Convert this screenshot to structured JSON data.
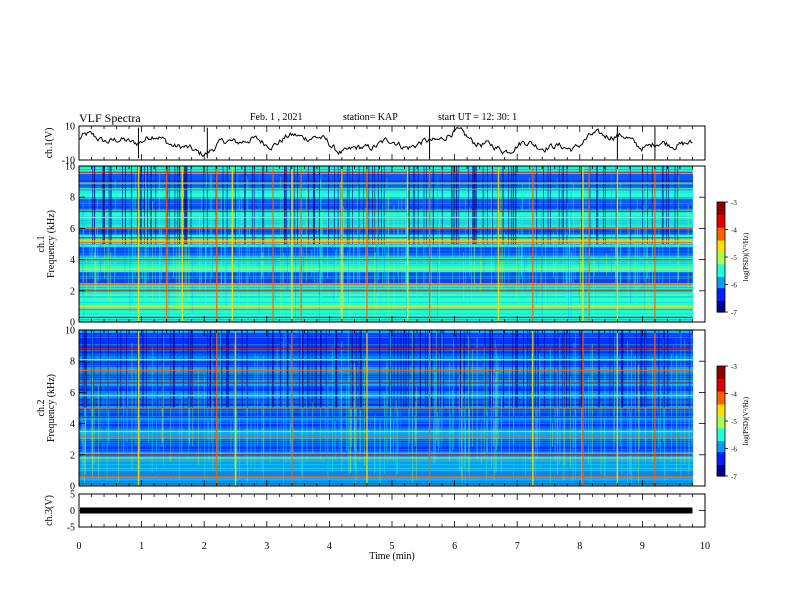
{
  "header": {
    "title": "VLF Spectra",
    "date": "Feb. 1 , 2021",
    "station": "station= KAP",
    "start": "start UT =  12: 30: 1"
  },
  "chart_data": [
    {
      "type": "line",
      "panel": "ch1-waveform",
      "ylabel": "ch.1(V)",
      "yticks": [
        "10",
        "-10"
      ],
      "ylim": [
        -10,
        10
      ],
      "xlim": [
        0,
        10
      ],
      "x_unit": "min",
      "trace_end_min": 9.8,
      "trace_color": "#000000"
    },
    {
      "type": "heatmap",
      "panel": "ch1-spectrogram",
      "ylabel": "ch.1\nFrequency (kHz)",
      "yticks": [
        "0",
        "2",
        "4",
        "6",
        "8",
        "10"
      ],
      "ylim": [
        0,
        10
      ],
      "xlim": [
        0,
        10
      ],
      "data_end_min": 9.8,
      "colorbar": {
        "label": "log(PSD)(V²/Hz)",
        "ticks": [
          "-3",
          "-4",
          "-5",
          "-6",
          "-7"
        ],
        "range": [
          -7,
          -3
        ]
      },
      "strong_lines_khz": [
        0.3,
        0.8,
        1.0,
        2.0,
        2.4,
        3.4,
        4.0,
        5.1,
        5.2,
        5.4,
        6.0,
        6.7,
        7.1,
        8.5,
        8.9,
        9.6
      ],
      "blue_bands_khz": [
        [
          2.5,
          3.2
        ],
        [
          4.2,
          4.8
        ],
        [
          5.6,
          6.0
        ],
        [
          7.2,
          7.9
        ],
        [
          8.6,
          9.5
        ]
      ],
      "spikes_min": [
        0.95,
        1.4,
        1.65,
        2.2,
        2.45,
        3.1,
        3.4,
        3.55,
        4.2,
        4.6,
        5.25,
        5.6,
        6.7,
        7.25,
        8.05,
        8.15,
        8.6,
        9.2
      ]
    },
    {
      "type": "heatmap",
      "panel": "ch2-spectrogram",
      "ylabel": "ch.2\nFrequency (kHz)",
      "yticks": [
        "0",
        "2",
        "4",
        "6",
        "8",
        "10"
      ],
      "ylim": [
        0,
        10
      ],
      "xlim": [
        0,
        10
      ],
      "data_end_min": 9.8,
      "colorbar": {
        "label": "log(PSD)(V²/Hz)",
        "ticks": [
          "-3",
          "-4",
          "-5",
          "-6",
          "-7"
        ],
        "range": [
          -7,
          -3
        ]
      },
      "strong_lines_khz": [
        0.15,
        0.6,
        1.8,
        2.0,
        3.2,
        3.5,
        4.4,
        5.0,
        5.8,
        6.6,
        7.4,
        8.1,
        8.8
      ],
      "blue_bands_khz": [
        [
          2.2,
          3.0
        ],
        [
          3.7,
          4.2
        ],
        [
          4.5,
          5.0
        ],
        [
          5.1,
          5.6
        ],
        [
          6.0,
          6.4
        ],
        [
          6.8,
          7.2
        ],
        [
          7.6,
          8.0
        ],
        [
          8.3,
          9.8
        ]
      ],
      "spikes_min": [
        0.95,
        2.2,
        2.5,
        3.4,
        4.6,
        5.6,
        7.25,
        8.05,
        8.6,
        9.2
      ]
    },
    {
      "type": "line",
      "panel": "ch3-waveform",
      "ylabel": "ch.3(V)",
      "yticks": [
        "5",
        "0",
        "-5"
      ],
      "ylim": [
        -5,
        5
      ],
      "xlim": [
        0,
        10
      ],
      "trace_level_v": 0,
      "trace_end_min": 9.8,
      "trace_color": "#000000"
    }
  ],
  "x_axis": {
    "label": "Time (min)",
    "ticks": [
      "0",
      "1",
      "2",
      "3",
      "4",
      "5",
      "6",
      "7",
      "8",
      "9",
      "10"
    ]
  },
  "colorscale": [
    "#00008f",
    "#0020ff",
    "#00a0ff",
    "#20ffd8",
    "#a8ff50",
    "#ffe000",
    "#ff6000",
    "#e00000",
    "#8f0000"
  ]
}
